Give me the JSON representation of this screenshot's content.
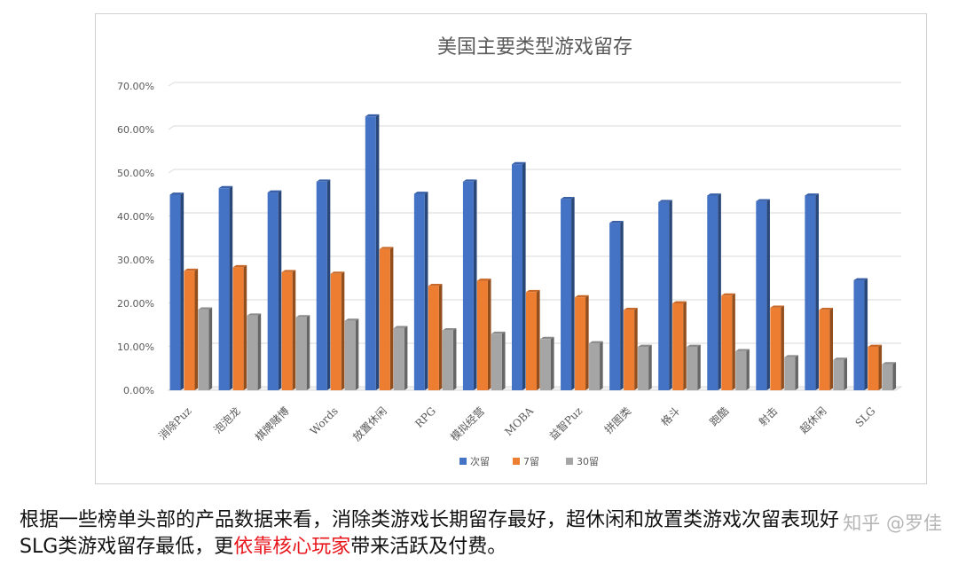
{
  "chart_data": {
    "type": "bar",
    "title": "美国主要类型游戏留存",
    "categories": [
      "消除Puz",
      "泡泡龙",
      "棋牌赌博",
      "Words",
      "放置休闲",
      "RPG",
      "模拟经营",
      "MOBA",
      "益智Puz",
      "拼图类",
      "格斗",
      "跑酷",
      "射击",
      "超休闲",
      "SLG"
    ],
    "series": [
      {
        "name": "次留",
        "color": "#4472c4",
        "values": [
          0.45,
          0.465,
          0.455,
          0.48,
          0.63,
          0.452,
          0.48,
          0.52,
          0.44,
          0.385,
          0.433,
          0.448,
          0.435,
          0.448,
          0.253
        ]
      },
      {
        "name": "7留",
        "color": "#ed7d31",
        "values": [
          0.275,
          0.283,
          0.272,
          0.268,
          0.325,
          0.24,
          0.252,
          0.226,
          0.214,
          0.185,
          0.2,
          0.218,
          0.19,
          0.185,
          0.1
        ]
      },
      {
        "name": "30留",
        "color": "#a5a5a5",
        "values": [
          0.186,
          0.172,
          0.168,
          0.16,
          0.143,
          0.138,
          0.13,
          0.118,
          0.108,
          0.1,
          0.1,
          0.09,
          0.076,
          0.07,
          0.06
        ]
      }
    ],
    "y_ticks": [
      "0.00%",
      "10.00%",
      "20.00%",
      "30.00%",
      "40.00%",
      "50.00%",
      "60.00%",
      "70.00%"
    ],
    "ylim": [
      0,
      0.7
    ],
    "grid": true,
    "legend_position": "bottom"
  },
  "caption": {
    "line1": "根据一些榜单头部的产品数据来看，消除类游戏长期留存最好，超休闲和放置类游戏次留表现好",
    "line2_before": "SLG类游戏留存最低，更",
    "line2_highlight": "依靠核心玩家",
    "line2_after": "带来活跃及付费。"
  },
  "watermark": "知乎 @罗佳"
}
